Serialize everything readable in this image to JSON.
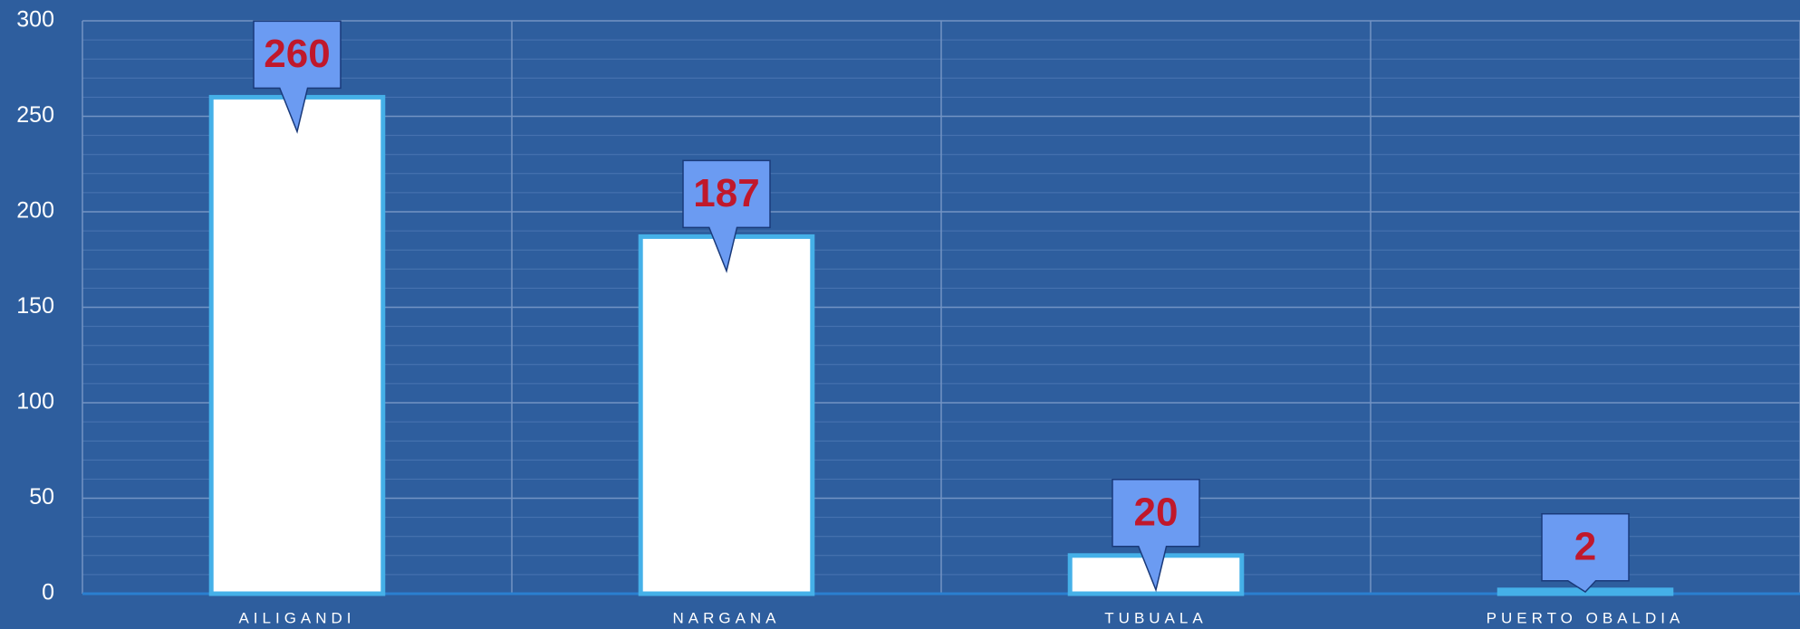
{
  "chart_data": {
    "type": "bar",
    "categories": [
      "AILIGANDI",
      "NARGANA",
      "TUBUALA",
      "PUERTO OBALDIA"
    ],
    "values": [
      260,
      187,
      20,
      2
    ],
    "color": "#ffffff",
    "ylim": [
      0,
      300
    ],
    "yticks": [
      0,
      50,
      100,
      150,
      200,
      250,
      300
    ],
    "grid": true
  }
}
